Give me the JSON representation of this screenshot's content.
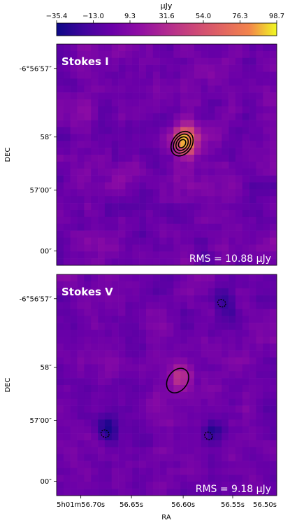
{
  "chart_data": {
    "type": "heatmap",
    "colormap": "plasma",
    "colorbar": {
      "unit_label": "μJy",
      "ticks": [
        "−35.4",
        "−13.0",
        "9.3",
        "31.6",
        "54.0",
        "76.3",
        "98.7"
      ],
      "range": [
        -35.4,
        98.7
      ],
      "position": "top"
    },
    "xlabel": "RA",
    "ylabel": "DEC",
    "x_ticks": [
      {
        "sup": "h",
        "sub": "m",
        "label_parts": [
          "5",
          "01",
          "56.70",
          "s"
        ]
      },
      {
        "label": "56.65s"
      },
      {
        "label": "56.60s"
      },
      {
        "label": "56.55s"
      },
      {
        "label": "56.50s"
      }
    ],
    "x_tick_texts": [
      "5h01m56.70s",
      "56.65s",
      "56.60s",
      "56.55s",
      "56.50s"
    ],
    "y_ticks": [
      "-6°56′57″",
      "58″",
      "57′00″",
      "00″"
    ],
    "panels": [
      {
        "title": "Stokes I",
        "rms_text": "RMS = 10.88 μJy",
        "rms": 10.88,
        "grid_size": [
          32,
          32
        ],
        "sources": [
          {
            "x": 0.57,
            "y": 0.55,
            "peak": 98.7,
            "contour_levels": 4,
            "contour_color": "black"
          }
        ]
      },
      {
        "title": "Stokes V",
        "rms_text": "RMS = 9.18 μJy",
        "rms": 9.18,
        "grid_size": [
          32,
          32
        ],
        "sources": [
          {
            "x": 0.55,
            "y": 0.52,
            "peak": 40.0,
            "contour_levels": 1,
            "contour_color": "black"
          },
          {
            "x": 0.22,
            "y": 0.28,
            "peak": -35.4,
            "contour_levels": 1,
            "contour_color": "black",
            "dashed": true
          },
          {
            "x": 0.75,
            "y": 0.87,
            "peak": -25.0,
            "contour_levels": 1,
            "contour_color": "black",
            "dashed": true
          },
          {
            "x": 0.69,
            "y": 0.27,
            "peak": -20.0,
            "contour_levels": 1,
            "contour_color": "black",
            "dashed": true
          }
        ]
      }
    ]
  }
}
